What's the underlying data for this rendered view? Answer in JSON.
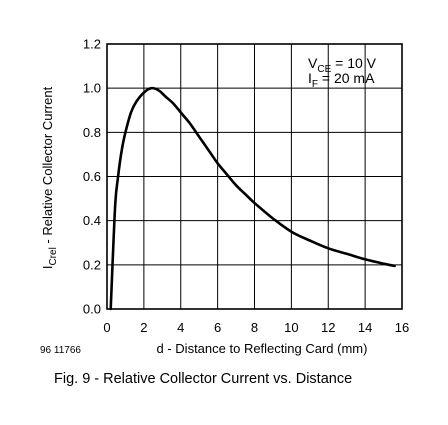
{
  "chart_data": {
    "type": "line",
    "xlabel": "d - Distance to Reflecting Card (mm)",
    "ylabel": "I",
    "ylabel_sub": "Crel",
    "ylabel_rest": " - Relative Collector Current",
    "xlim": [
      0,
      16
    ],
    "ylim": [
      0,
      1.2
    ],
    "x_ticks": [
      "0",
      "2",
      "4",
      "6",
      "8",
      "10",
      "12",
      "14",
      "16"
    ],
    "y_ticks": [
      "0.0",
      "0.2",
      "0.4",
      "0.6",
      "0.8",
      "1.0",
      "1.2"
    ],
    "x_tick_values": [
      0,
      2,
      4,
      6,
      8,
      10,
      12,
      14,
      16
    ],
    "y_tick_values": [
      0,
      0.2,
      0.4,
      0.6,
      0.8,
      1.0,
      1.2
    ],
    "grid": true,
    "legend_position": "top-right",
    "conditions": [
      {
        "main": "V",
        "sub": "CE",
        "rest": " = 10 V"
      },
      {
        "main": "I",
        "sub": "F",
        "rest": " = 20 mA"
      }
    ],
    "series": [
      {
        "x": [
          0.2,
          0.3,
          0.45,
          0.6,
          0.8,
          1.0,
          1.3,
          1.6,
          2.0,
          2.4,
          2.8,
          3.2,
          3.6,
          4.0,
          4.5,
          5.0,
          5.5,
          6.0,
          6.5,
          7.0,
          7.5,
          8.0,
          9.0,
          10.0,
          11.0,
          12.0,
          13.0,
          14.0,
          15.0,
          15.6
        ],
        "y": [
          0.0,
          0.2,
          0.48,
          0.6,
          0.72,
          0.8,
          0.89,
          0.94,
          0.98,
          1.0,
          0.99,
          0.96,
          0.93,
          0.89,
          0.84,
          0.78,
          0.72,
          0.66,
          0.61,
          0.56,
          0.52,
          0.48,
          0.41,
          0.35,
          0.31,
          0.275,
          0.25,
          0.225,
          0.205,
          0.195
        ]
      }
    ]
  },
  "figure": {
    "doc_number": "96 11766",
    "caption": "Fig. 9 - Relative Collector Current vs. Distance"
  }
}
